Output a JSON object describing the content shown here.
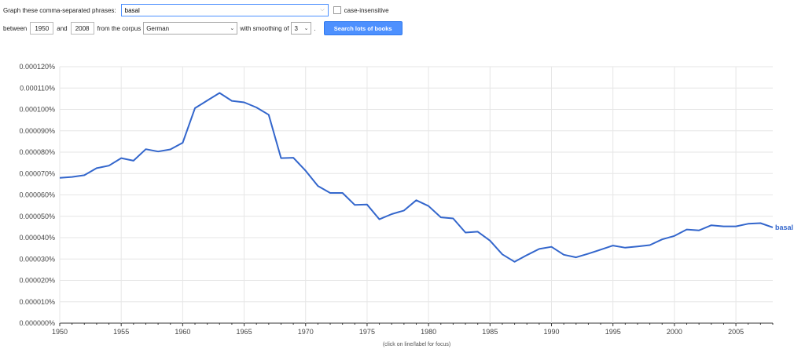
{
  "form": {
    "phrases_label": "Graph these comma-separated phrases:",
    "phrases_value": "basal",
    "case_label": "case-insensitive",
    "between_label": "between",
    "year_start": "1950",
    "and_label": "and",
    "year_end": "2008",
    "corpus_label": "from the corpus",
    "corpus_value": "German",
    "smoothing_label": "with smoothing of",
    "smoothing_value": "3",
    "period": ".",
    "search_button": "Search lots of books"
  },
  "hint": "(click on line/label for focus)",
  "colors": {
    "series": "#3366cc",
    "button": "#4d90fe"
  },
  "chart_data": {
    "type": "line",
    "x": [
      1950,
      1951,
      1952,
      1953,
      1954,
      1955,
      1956,
      1957,
      1958,
      1959,
      1960,
      1961,
      1962,
      1963,
      1964,
      1965,
      1966,
      1967,
      1968,
      1969,
      1970,
      1971,
      1972,
      1973,
      1974,
      1975,
      1976,
      1977,
      1978,
      1979,
      1980,
      1981,
      1982,
      1983,
      1984,
      1985,
      1986,
      1987,
      1988,
      1989,
      1990,
      1991,
      1992,
      1993,
      1994,
      1995,
      1996,
      1997,
      1998,
      1999,
      2000,
      2001,
      2002,
      2003,
      2004,
      2005,
      2006,
      2007,
      2008
    ],
    "series": [
      {
        "name": "basal",
        "values": [
          6.8e-07,
          6.84e-07,
          6.92e-07,
          7.25e-07,
          7.37e-07,
          7.72e-07,
          7.6e-07,
          8.14e-07,
          8.03e-07,
          8.13e-07,
          8.44e-07,
          1.006e-06,
          1.042e-06,
          1.077e-06,
          1.04e-06,
          1.033e-06,
          1.009e-06,
          9.75e-07,
          7.72e-07,
          7.74e-07,
          7.13e-07,
          6.42e-07,
          6.09e-07,
          6.09e-07,
          5.53e-07,
          5.55e-07,
          4.86e-07,
          5.1e-07,
          5.27e-07,
          5.75e-07,
          5.48e-07,
          4.95e-07,
          4.9e-07,
          4.24e-07,
          4.28e-07,
          3.86e-07,
          3.22e-07,
          2.87e-07,
          3.18e-07,
          3.47e-07,
          3.57e-07,
          3.2e-07,
          3.08e-07,
          3.25e-07,
          3.44e-07,
          3.63e-07,
          3.53e-07,
          3.59e-07,
          3.65e-07,
          3.92e-07,
          4.08e-07,
          4.38e-07,
          4.34e-07,
          4.58e-07,
          4.53e-07,
          4.53e-07,
          4.65e-07,
          4.68e-07,
          4.48e-07
        ]
      }
    ],
    "yticks": [
      "0.000000%",
      "0.000010%",
      "0.000020%",
      "0.000030%",
      "0.000040%",
      "0.000050%",
      "0.000060%",
      "0.000070%",
      "0.000080%",
      "0.000090%",
      "0.000100%",
      "0.000110%",
      "0.000120%"
    ],
    "xticks": [
      "1950",
      "1955",
      "1960",
      "1965",
      "1970",
      "1975",
      "1980",
      "1985",
      "1990",
      "1995",
      "2000",
      "2005"
    ],
    "ylim": [
      0,
      1.2e-06
    ],
    "xlim": [
      1950,
      2008
    ],
    "grid": true
  }
}
